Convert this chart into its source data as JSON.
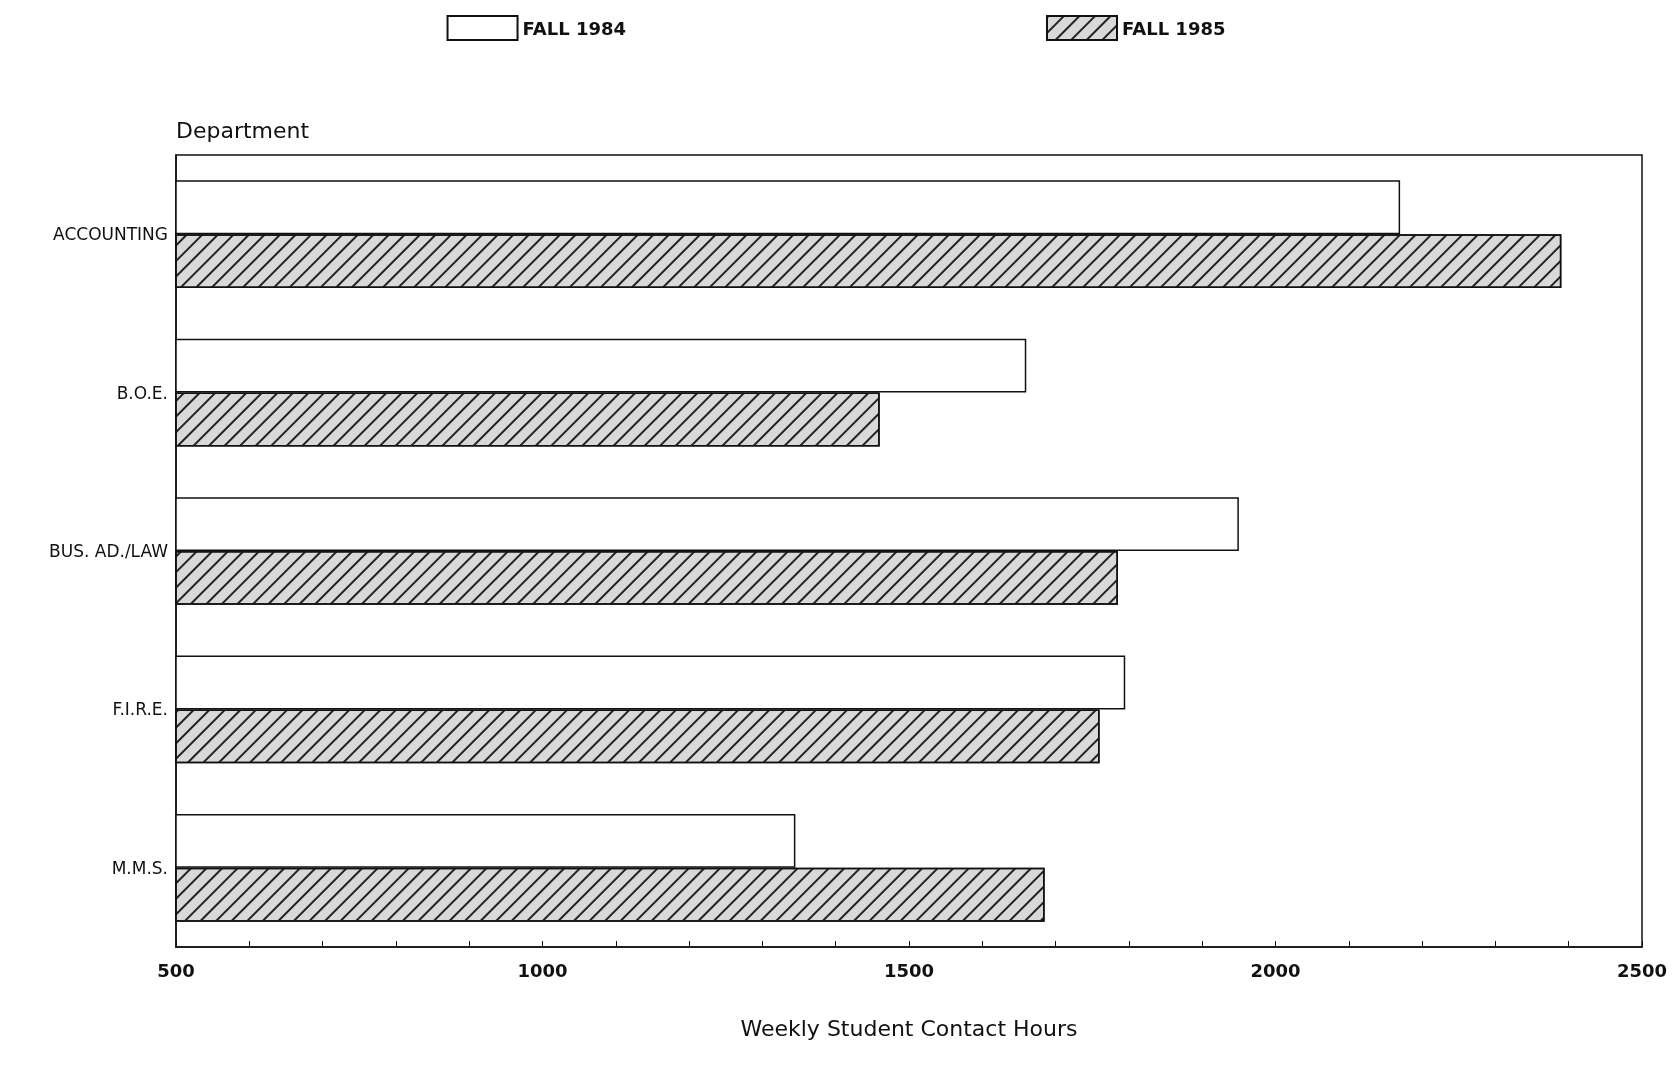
{
  "chart_data": {
    "type": "bar",
    "orientation": "horizontal",
    "xlabel": "Weekly Student Contact Hours",
    "ylabel": "Department",
    "categories": [
      "ACCOUNTING",
      "B.O.E.",
      "BUS. AD./LAW",
      "F.I.R.E.",
      "M.M.S."
    ],
    "series": [
      {
        "name": "FALL 1984",
        "color": "#ffffff",
        "values": [
          2170,
          1660,
          1950,
          1795,
          1345
        ]
      },
      {
        "name": "FALL 1985",
        "color": "#d9d9d9",
        "values": [
          2390,
          1460,
          1785,
          1760,
          1685
        ]
      }
    ],
    "xlim": [
      500,
      2500
    ],
    "xticks": [
      500,
      {
        "value": 600,
        "label": null
      },
      {
        "value": 700,
        "label": null
      },
      {
        "value": 800,
        "label": null
      },
      {
        "value": 900,
        "label": null
      },
      1000,
      {
        "value": 1100,
        "label": null
      },
      {
        "value": 1200,
        "label": null
      },
      {
        "value": 1300,
        "label": null
      },
      {
        "value": 1400,
        "label": null
      },
      1500,
      {
        "value": 1600,
        "label": null
      },
      {
        "value": 1700,
        "label": null
      },
      {
        "value": 1800,
        "label": null
      },
      {
        "value": 1900,
        "label": null
      },
      2000,
      {
        "value": 2100,
        "label": null
      },
      {
        "value": 2200,
        "label": null
      },
      {
        "value": 2300,
        "label": null
      },
      {
        "value": 2400,
        "label": null
      },
      2500
    ],
    "grid": false,
    "legend": "top"
  }
}
